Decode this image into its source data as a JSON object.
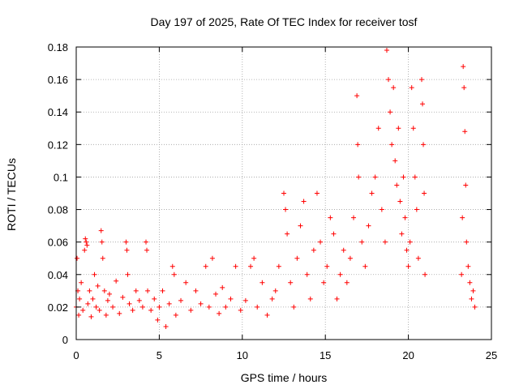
{
  "chart_data": {
    "type": "scatter",
    "title": "Day 197 of 2025, Rate Of TEC Index for receiver tosf",
    "xlabel": "GPS time / hours",
    "ylabel": "ROTI / TECUs",
    "xlim": [
      0,
      25
    ],
    "ylim": [
      0,
      0.18
    ],
    "xticks": [
      0,
      5,
      10,
      15,
      20,
      25
    ],
    "xtick_labels": [
      "0",
      "5",
      "10",
      "15",
      "20",
      "25"
    ],
    "yticks": [
      0,
      0.02,
      0.04,
      0.06,
      0.08,
      0.1,
      0.12,
      0.14,
      0.16,
      0.18
    ],
    "ytick_labels": [
      "0",
      "0.02",
      "0.04",
      "0.06",
      "0.08",
      "0.1",
      "0.12",
      "0.14",
      "0.16",
      "0.18"
    ],
    "grid": "dotted",
    "marker": "+",
    "color": "#ff0000",
    "series": [
      {
        "points": [
          [
            0.0,
            0.02
          ],
          [
            0.05,
            0.05
          ],
          [
            0.1,
            0.03
          ],
          [
            0.15,
            0.015
          ],
          [
            0.2,
            0.025
          ],
          [
            0.3,
            0.035
          ],
          [
            0.4,
            0.018
          ],
          [
            0.5,
            0.055
          ],
          [
            0.55,
            0.062
          ],
          [
            0.6,
            0.06
          ],
          [
            0.65,
            0.058
          ],
          [
            0.7,
            0.022
          ],
          [
            0.8,
            0.03
          ],
          [
            0.9,
            0.014
          ],
          [
            1.0,
            0.025
          ],
          [
            1.1,
            0.04
          ],
          [
            1.2,
            0.02
          ],
          [
            1.3,
            0.033
          ],
          [
            1.4,
            0.018
          ],
          [
            1.5,
            0.067
          ],
          [
            1.55,
            0.06
          ],
          [
            1.6,
            0.05
          ],
          [
            1.7,
            0.03
          ],
          [
            1.8,
            0.015
          ],
          [
            1.9,
            0.024
          ],
          [
            2.0,
            0.028
          ],
          [
            2.2,
            0.02
          ],
          [
            2.4,
            0.036
          ],
          [
            2.6,
            0.016
          ],
          [
            2.8,
            0.026
          ],
          [
            3.0,
            0.06
          ],
          [
            3.05,
            0.055
          ],
          [
            3.1,
            0.04
          ],
          [
            3.2,
            0.022
          ],
          [
            3.4,
            0.018
          ],
          [
            3.6,
            0.03
          ],
          [
            3.8,
            0.024
          ],
          [
            4.0,
            0.02
          ],
          [
            4.2,
            0.06
          ],
          [
            4.25,
            0.055
          ],
          [
            4.3,
            0.03
          ],
          [
            4.5,
            0.018
          ],
          [
            4.7,
            0.025
          ],
          [
            4.9,
            0.012
          ],
          [
            5.0,
            0.02
          ],
          [
            5.2,
            0.03
          ],
          [
            5.4,
            0.008
          ],
          [
            5.6,
            0.022
          ],
          [
            5.8,
            0.045
          ],
          [
            5.9,
            0.04
          ],
          [
            6.0,
            0.015
          ],
          [
            6.3,
            0.024
          ],
          [
            6.6,
            0.035
          ],
          [
            6.9,
            0.018
          ],
          [
            7.2,
            0.03
          ],
          [
            7.5,
            0.022
          ],
          [
            7.8,
            0.045
          ],
          [
            8.0,
            0.02
          ],
          [
            8.2,
            0.05
          ],
          [
            8.4,
            0.028
          ],
          [
            8.6,
            0.016
          ],
          [
            8.8,
            0.032
          ],
          [
            9.0,
            0.02
          ],
          [
            9.3,
            0.025
          ],
          [
            9.6,
            0.045
          ],
          [
            9.9,
            0.018
          ],
          [
            10.2,
            0.024
          ],
          [
            10.5,
            0.045
          ],
          [
            10.7,
            0.05
          ],
          [
            10.9,
            0.02
          ],
          [
            11.2,
            0.035
          ],
          [
            11.5,
            0.015
          ],
          [
            11.8,
            0.025
          ],
          [
            12.0,
            0.03
          ],
          [
            12.2,
            0.045
          ],
          [
            12.5,
            0.09
          ],
          [
            12.6,
            0.08
          ],
          [
            12.7,
            0.065
          ],
          [
            12.9,
            0.035
          ],
          [
            13.1,
            0.02
          ],
          [
            13.3,
            0.05
          ],
          [
            13.5,
            0.07
          ],
          [
            13.7,
            0.085
          ],
          [
            13.9,
            0.04
          ],
          [
            14.1,
            0.025
          ],
          [
            14.3,
            0.055
          ],
          [
            14.5,
            0.09
          ],
          [
            14.7,
            0.06
          ],
          [
            14.9,
            0.035
          ],
          [
            15.1,
            0.045
          ],
          [
            15.3,
            0.075
          ],
          [
            15.5,
            0.065
          ],
          [
            15.7,
            0.025
          ],
          [
            15.9,
            0.04
          ],
          [
            16.1,
            0.055
          ],
          [
            16.3,
            0.035
          ],
          [
            16.5,
            0.05
          ],
          [
            16.7,
            0.075
          ],
          [
            16.9,
            0.15
          ],
          [
            16.95,
            0.12
          ],
          [
            17.0,
            0.1
          ],
          [
            17.2,
            0.06
          ],
          [
            17.4,
            0.045
          ],
          [
            17.6,
            0.07
          ],
          [
            17.8,
            0.09
          ],
          [
            18.0,
            0.1
          ],
          [
            18.2,
            0.13
          ],
          [
            18.4,
            0.08
          ],
          [
            18.6,
            0.06
          ],
          [
            18.7,
            0.178
          ],
          [
            18.8,
            0.16
          ],
          [
            18.9,
            0.14
          ],
          [
            19.0,
            0.12
          ],
          [
            19.1,
            0.155
          ],
          [
            19.2,
            0.11
          ],
          [
            19.3,
            0.095
          ],
          [
            19.4,
            0.13
          ],
          [
            19.5,
            0.085
          ],
          [
            19.6,
            0.065
          ],
          [
            19.7,
            0.1
          ],
          [
            19.8,
            0.075
          ],
          [
            19.9,
            0.055
          ],
          [
            20.0,
            0.045
          ],
          [
            20.1,
            0.06
          ],
          [
            20.2,
            0.155
          ],
          [
            20.3,
            0.13
          ],
          [
            20.4,
            0.1
          ],
          [
            20.5,
            0.08
          ],
          [
            20.6,
            0.05
          ],
          [
            20.8,
            0.16
          ],
          [
            20.85,
            0.145
          ],
          [
            20.9,
            0.12
          ],
          [
            20.95,
            0.09
          ],
          [
            21.0,
            0.04
          ],
          [
            23.2,
            0.04
          ],
          [
            23.25,
            0.075
          ],
          [
            23.3,
            0.168
          ],
          [
            23.35,
            0.155
          ],
          [
            23.4,
            0.128
          ],
          [
            23.45,
            0.095
          ],
          [
            23.5,
            0.06
          ],
          [
            23.6,
            0.045
          ],
          [
            23.7,
            0.035
          ],
          [
            23.8,
            0.025
          ],
          [
            23.9,
            0.03
          ],
          [
            24.0,
            0.02
          ]
        ]
      }
    ]
  }
}
